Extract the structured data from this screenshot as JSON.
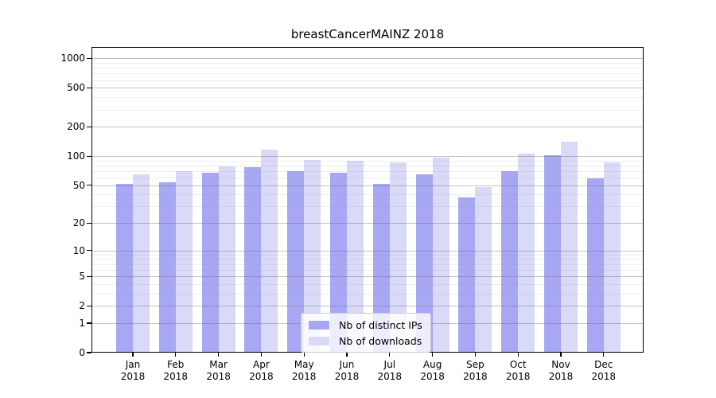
{
  "chart_data": {
    "type": "bar",
    "title": "breastCancerMAINZ 2018",
    "categories": [
      "Jan",
      "Feb",
      "Mar",
      "Apr",
      "May",
      "Jun",
      "Jul",
      "Aug",
      "Sep",
      "Oct",
      "Nov",
      "Dec"
    ],
    "x_year": "2018",
    "series": [
      {
        "name": "Nb of distinct IPs",
        "color": "#a7a7f3",
        "values": [
          52,
          54,
          67,
          77,
          70,
          68,
          52,
          65,
          37,
          70,
          103,
          59
        ]
      },
      {
        "name": "Nb of downloads",
        "color": "#d9d9f8",
        "values": [
          65,
          70,
          78,
          117,
          92,
          90,
          86,
          96,
          48,
          106,
          140,
          86
        ]
      }
    ],
    "y_axis": {
      "scale": "log1p",
      "major_ticks": [
        0,
        1,
        2,
        5,
        10,
        20,
        50,
        100,
        200,
        500,
        1000
      ],
      "minor_gridlines": [
        3,
        4,
        6,
        7,
        8,
        9,
        30,
        40,
        60,
        70,
        80,
        90,
        300,
        400,
        600,
        700,
        800,
        900
      ],
      "top_value": 1310
    },
    "grid": "on",
    "legend": {
      "position": "lower-center-inside"
    },
    "xlabel": "",
    "ylabel": ""
  }
}
